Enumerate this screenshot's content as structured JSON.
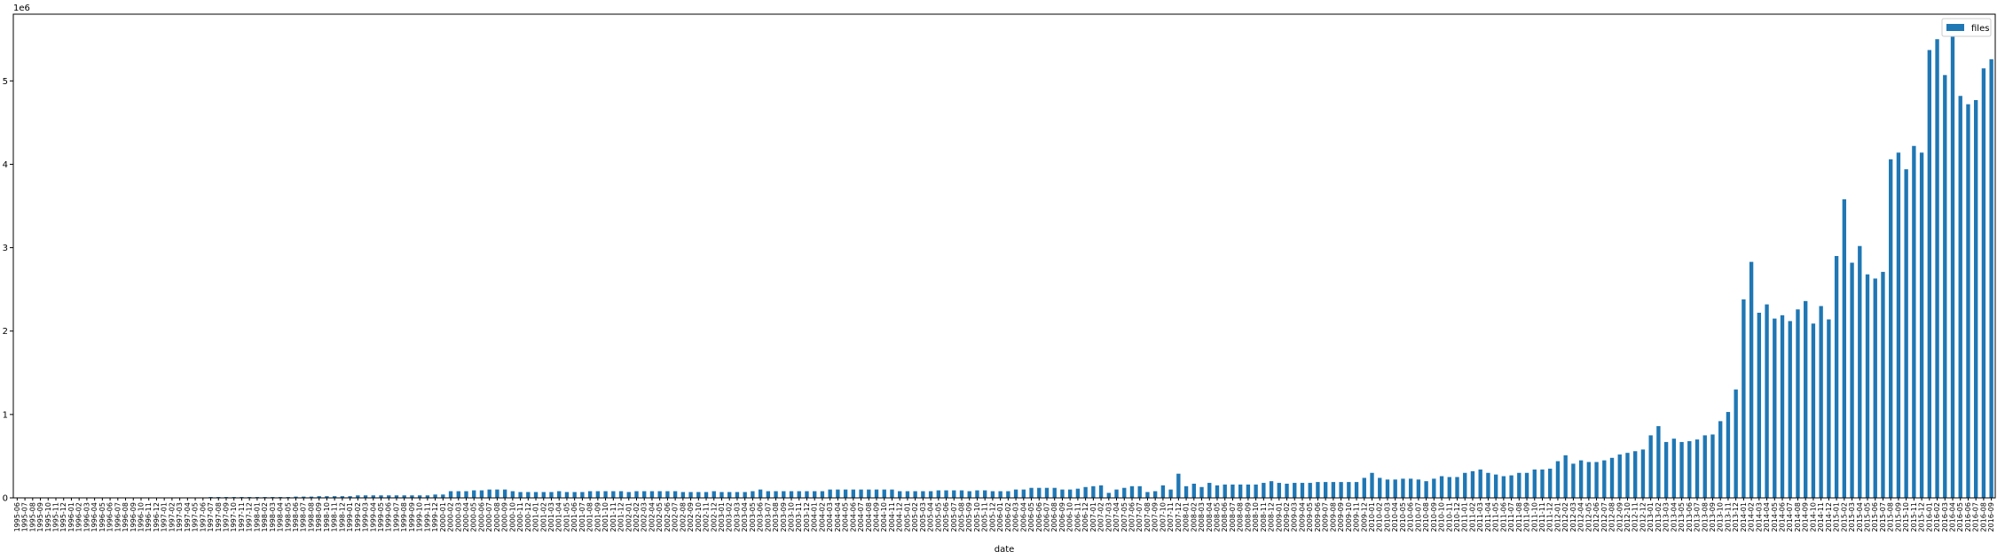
{
  "chart_data": {
    "type": "bar",
    "title": "",
    "xlabel": "date",
    "ylabel": "",
    "y_scale_label": "1e6",
    "ylim": [
      0,
      5.8
    ],
    "yticks": [
      0,
      1,
      2,
      3,
      4,
      5
    ],
    "ytick_labels": [
      "0",
      "1",
      "2",
      "3",
      "4",
      "5"
    ],
    "legend": {
      "position": "top-right",
      "entries": [
        "files"
      ]
    },
    "colors": {
      "bar": "#1f77b4"
    },
    "start_month": "1995-06",
    "series": [
      {
        "name": "files",
        "values": [
          0.0,
          0.0,
          0.0,
          0.0,
          0.0,
          0.0,
          0.0,
          0.0,
          0.0,
          0.0,
          0.0,
          0.0,
          0.0,
          0.0,
          0.0,
          0.0,
          0.0,
          0.0,
          0.0,
          0.0,
          0.0,
          0.0,
          0.0,
          0.0,
          0.0,
          0.01,
          0.01,
          0.01,
          0.01,
          0.01,
          0.01,
          0.01,
          0.01,
          0.01,
          0.01,
          0.01,
          0.015,
          0.015,
          0.015,
          0.02,
          0.02,
          0.02,
          0.02,
          0.02,
          0.03,
          0.03,
          0.03,
          0.03,
          0.03,
          0.03,
          0.03,
          0.03,
          0.03,
          0.03,
          0.04,
          0.04,
          0.08,
          0.08,
          0.08,
          0.09,
          0.09,
          0.1,
          0.1,
          0.1,
          0.08,
          0.07,
          0.07,
          0.07,
          0.07,
          0.07,
          0.08,
          0.07,
          0.07,
          0.07,
          0.08,
          0.08,
          0.08,
          0.08,
          0.08,
          0.07,
          0.08,
          0.08,
          0.08,
          0.08,
          0.08,
          0.08,
          0.07,
          0.07,
          0.07,
          0.07,
          0.08,
          0.07,
          0.07,
          0.07,
          0.07,
          0.08,
          0.1,
          0.08,
          0.08,
          0.08,
          0.08,
          0.08,
          0.08,
          0.08,
          0.08,
          0.1,
          0.1,
          0.1,
          0.1,
          0.1,
          0.1,
          0.1,
          0.1,
          0.1,
          0.08,
          0.08,
          0.08,
          0.08,
          0.08,
          0.09,
          0.09,
          0.09,
          0.09,
          0.08,
          0.09,
          0.09,
          0.08,
          0.08,
          0.08,
          0.1,
          0.1,
          0.12,
          0.12,
          0.12,
          0.12,
          0.1,
          0.1,
          0.11,
          0.13,
          0.14,
          0.15,
          0.06,
          0.1,
          0.12,
          0.14,
          0.14,
          0.07,
          0.08,
          0.15,
          0.1,
          0.29,
          0.14,
          0.17,
          0.13,
          0.18,
          0.15,
          0.16,
          0.16,
          0.16,
          0.16,
          0.16,
          0.18,
          0.2,
          0.18,
          0.17,
          0.18,
          0.18,
          0.18,
          0.19,
          0.19,
          0.19,
          0.19,
          0.19,
          0.19,
          0.24,
          0.3,
          0.24,
          0.22,
          0.22,
          0.23,
          0.23,
          0.22,
          0.2,
          0.23,
          0.26,
          0.25,
          0.25,
          0.3,
          0.32,
          0.34,
          0.3,
          0.28,
          0.26,
          0.27,
          0.3,
          0.3,
          0.34,
          0.34,
          0.35,
          0.44,
          0.51,
          0.41,
          0.45,
          0.43,
          0.43,
          0.45,
          0.48,
          0.52,
          0.54,
          0.56,
          0.58,
          0.75,
          0.86,
          0.67,
          0.71,
          0.67,
          0.68,
          0.7,
          0.75,
          0.76,
          0.92,
          1.03,
          1.3,
          2.38,
          2.83,
          2.22,
          2.32,
          2.15,
          2.19,
          2.12,
          2.26,
          2.36,
          2.09,
          2.3,
          2.14,
          2.9,
          3.58,
          2.82,
          3.02,
          2.68,
          2.63,
          2.71,
          4.06,
          4.14,
          3.94,
          4.22,
          4.14,
          5.37,
          5.5,
          5.07,
          5.55,
          4.82,
          4.72,
          4.77,
          5.15,
          5.26
        ]
      }
    ]
  }
}
